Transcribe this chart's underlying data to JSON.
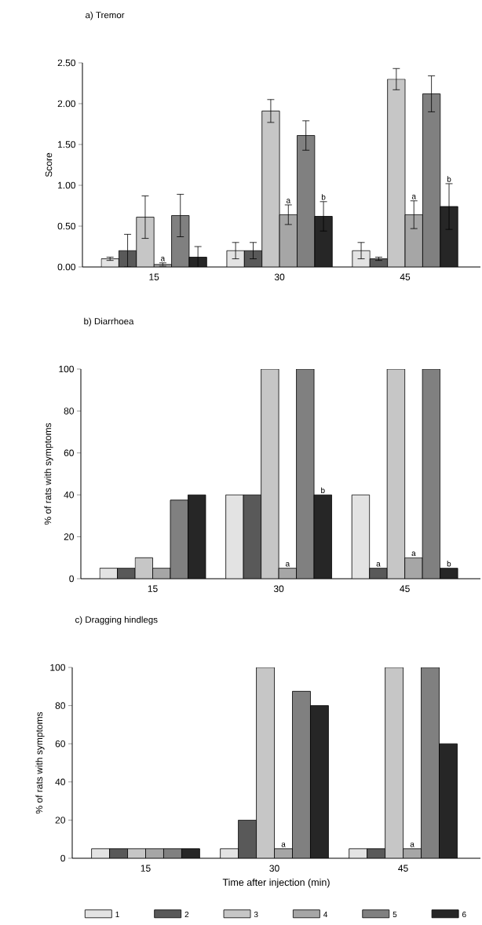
{
  "chart_data": [
    {
      "type": "bar",
      "title": "a) Tremor",
      "ylabel": "Score",
      "categories": [
        "15",
        "30",
        "45"
      ],
      "ylim": [
        0,
        2.5
      ],
      "yticks": [
        {
          "value": 0,
          "label": "0.00"
        },
        {
          "value": 0.5,
          "label": "0.50"
        },
        {
          "value": 1,
          "label": "1.00"
        },
        {
          "value": 1.5,
          "label": "1.50"
        },
        {
          "value": 2,
          "label": "2.00"
        },
        {
          "value": 2.5,
          "label": "2.50"
        }
      ],
      "series": [
        {
          "color": "#e3e3e3",
          "values": [
            0.1,
            0.2,
            0.2
          ],
          "errors": [
            0.02,
            0.1,
            0.1
          ]
        },
        {
          "color": "#595959",
          "values": [
            0.2,
            0.2,
            0.1
          ],
          "errors": [
            0.2,
            0.1,
            0.02
          ]
        },
        {
          "color": "#c6c6c6",
          "values": [
            0.61,
            1.91,
            2.3
          ],
          "errors": [
            0.26,
            0.14,
            0.13
          ]
        },
        {
          "color": "#a6a6a6",
          "values": [
            0.03,
            0.64,
            0.64
          ],
          "errors": [
            0.02,
            0.12,
            0.17
          ],
          "value_labels": [
            "a",
            "a",
            "a"
          ]
        },
        {
          "color": "#808080",
          "values": [
            0.63,
            1.61,
            2.12
          ],
          "errors": [
            0.26,
            0.18,
            0.22
          ]
        },
        {
          "color": "#262626",
          "values": [
            0.12,
            0.62,
            0.74
          ],
          "errors": [
            0.13,
            0.18,
            0.28
          ],
          "value_labels": [
            null,
            "b",
            "b"
          ]
        }
      ]
    },
    {
      "type": "bar",
      "title": "b) Diarrhoea",
      "ylabel": "% of rats with symptoms",
      "categories": [
        "15",
        "30",
        "45"
      ],
      "ylim": [
        0,
        100
      ],
      "yticks": [
        0,
        20,
        40,
        60,
        80,
        100
      ],
      "series": [
        {
          "color": "#e3e3e3",
          "values": [
            5,
            40,
            40
          ]
        },
        {
          "color": "#595959",
          "values": [
            5,
            40,
            5
          ],
          "value_labels": [
            null,
            null,
            "a"
          ]
        },
        {
          "color": "#c6c6c6",
          "values": [
            10,
            100,
            100
          ]
        },
        {
          "color": "#a6a6a6",
          "values": [
            5,
            5,
            10
          ],
          "value_labels": [
            null,
            "a",
            "a"
          ]
        },
        {
          "color": "#808080",
          "values": [
            37.5,
            100,
            100
          ]
        },
        {
          "color": "#262626",
          "values": [
            40,
            40,
            5
          ],
          "value_labels": [
            null,
            "b",
            "b"
          ]
        }
      ]
    },
    {
      "type": "bar",
      "title": "c) Dragging hindlegs",
      "xlabel": "Time after injection (min)",
      "ylabel": "% of rats with symptoms",
      "categories": [
        "15",
        "30",
        "45"
      ],
      "ylim": [
        0,
        100
      ],
      "yticks": [
        0,
        20,
        40,
        60,
        80,
        100
      ],
      "legend": "bottom",
      "series": [
        {
          "name": "1",
          "color": "#e3e3e3",
          "values": [
            5,
            5,
            5
          ]
        },
        {
          "name": "2",
          "color": "#595959",
          "values": [
            5,
            20,
            5
          ]
        },
        {
          "name": "3",
          "color": "#c6c6c6",
          "values": [
            5,
            100,
            100
          ]
        },
        {
          "name": "4",
          "color": "#a6a6a6",
          "values": [
            5,
            5,
            5
          ],
          "value_labels": [
            null,
            "a",
            "a"
          ]
        },
        {
          "name": "5",
          "color": "#808080",
          "values": [
            5,
            87.5,
            100
          ]
        },
        {
          "name": "6",
          "color": "#262626",
          "values": [
            5,
            80,
            60
          ]
        }
      ]
    }
  ]
}
